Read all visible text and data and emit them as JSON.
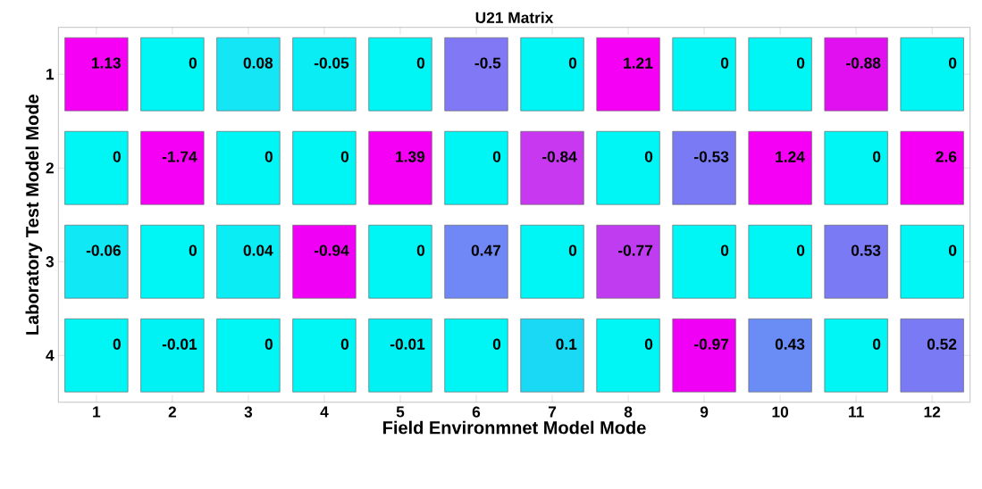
{
  "chart_data": {
    "type": "heatmap",
    "title": "U21 Matrix",
    "xlabel": "Field Environmnet Model Mode",
    "ylabel": "Laboratory Test Model Mode",
    "categories": [
      "1",
      "2",
      "3",
      "4",
      "5",
      "6",
      "7",
      "8",
      "9",
      "10",
      "11",
      "12"
    ],
    "y_categories": [
      "1",
      "2",
      "3",
      "4"
    ],
    "cells": [
      [
        1.13,
        0,
        0.08,
        -0.05,
        0,
        -0.5,
        0,
        1.21,
        0,
        0,
        -0.88,
        0
      ],
      [
        0,
        -1.74,
        0,
        0,
        1.39,
        0,
        -0.84,
        0,
        -0.53,
        1.24,
        0,
        2.6
      ],
      [
        -0.06,
        0,
        0.04,
        -0.94,
        0,
        0.47,
        0,
        -0.77,
        0,
        0,
        0.53,
        0
      ],
      [
        0,
        -0.01,
        0,
        0,
        -0.01,
        0,
        0.1,
        0,
        -0.97,
        0.43,
        0,
        0.52
      ]
    ],
    "colors": [
      [
        "#f500f5",
        "#00f5f5",
        "#14e6f5",
        "#0aedf5",
        "#00f5f5",
        "#8078f5",
        "#00f5f5",
        "#f500f5",
        "#00f5f5",
        "#00f5f5",
        "#e010f0",
        "#00f5f5"
      ],
      [
        "#00f5f5",
        "#f500f5",
        "#00f5f5",
        "#00f5f5",
        "#f500f5",
        "#00f5f5",
        "#c838f0",
        "#00f5f5",
        "#7a7af5",
        "#f500f5",
        "#00f5f5",
        "#f500f5"
      ],
      [
        "#10e8f5",
        "#00f5f5",
        "#0aedf5",
        "#f000f5",
        "#00f5f5",
        "#7088f5",
        "#00f5f5",
        "#c03cf0",
        "#00f5f5",
        "#00f5f5",
        "#7a7af5",
        "#00f5f5"
      ],
      [
        "#00f5f5",
        "#00f2f5",
        "#00f5f5",
        "#00f5f5",
        "#00f2f5",
        "#00f5f5",
        "#1ad9f5",
        "#00f5f5",
        "#f000f5",
        "#6a8cf5",
        "#00f5f5",
        "#7a7af5"
      ]
    ],
    "data_labels": true
  }
}
